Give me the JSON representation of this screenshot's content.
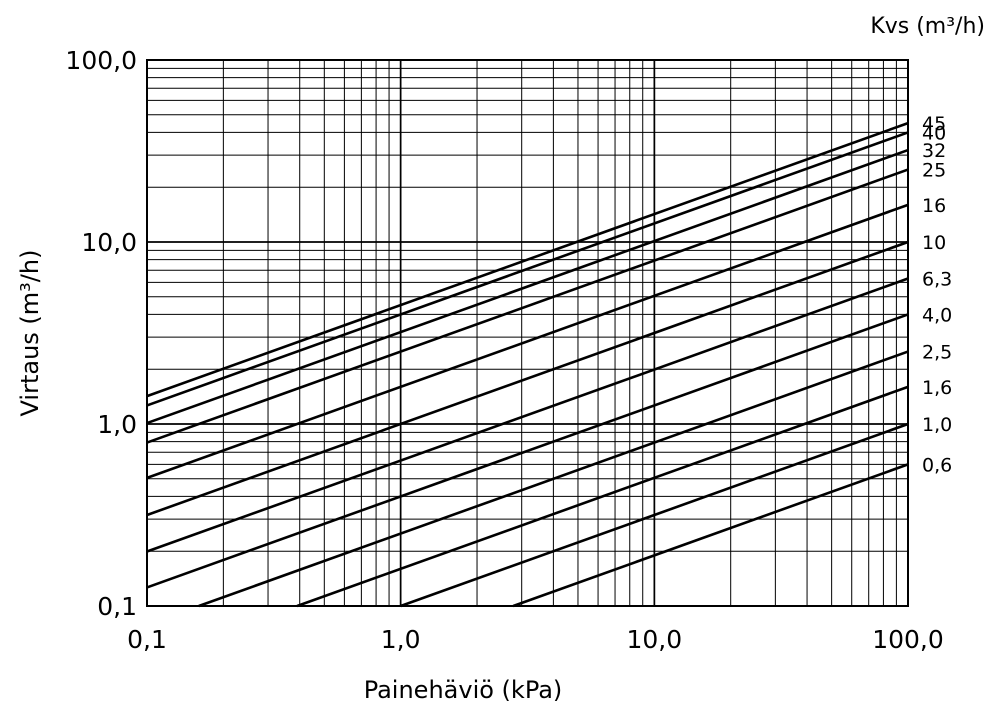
{
  "chart_data": {
    "type": "line",
    "xscale": "log",
    "yscale": "log",
    "xlim": [
      0.1,
      100
    ],
    "ylim": [
      0.1,
      100
    ],
    "xlabel": "Painehäviö (kPa)",
    "ylabel": "Virtaus (m³/h)",
    "legend_title": "Kvs (m³/h)",
    "x_ticks": [
      0.1,
      1,
      10,
      100
    ],
    "x_tick_labels": [
      "0,1",
      "1,0",
      "10,0",
      "100,0"
    ],
    "y_ticks": [
      0.1,
      1,
      10,
      100
    ],
    "y_tick_labels": [
      "0,1",
      "1,0",
      "10,0",
      "100,0"
    ],
    "grid": true,
    "colors": {
      "line": "#000000",
      "grid": "#000000",
      "background": "#ffffff"
    },
    "series": [
      {
        "name": "45",
        "kvs": 45
      },
      {
        "name": "40",
        "kvs": 40
      },
      {
        "name": "32",
        "kvs": 32
      },
      {
        "name": "25",
        "kvs": 25
      },
      {
        "name": "16",
        "kvs": 16
      },
      {
        "name": "10",
        "kvs": 10
      },
      {
        "name": "6,3",
        "kvs": 6.3
      },
      {
        "name": "4,0",
        "kvs": 4.0
      },
      {
        "name": "2,5",
        "kvs": 2.5
      },
      {
        "name": "1,6",
        "kvs": 1.6
      },
      {
        "name": "1,0",
        "kvs": 1.0
      },
      {
        "name": "0,6",
        "kvs": 0.6
      }
    ]
  }
}
